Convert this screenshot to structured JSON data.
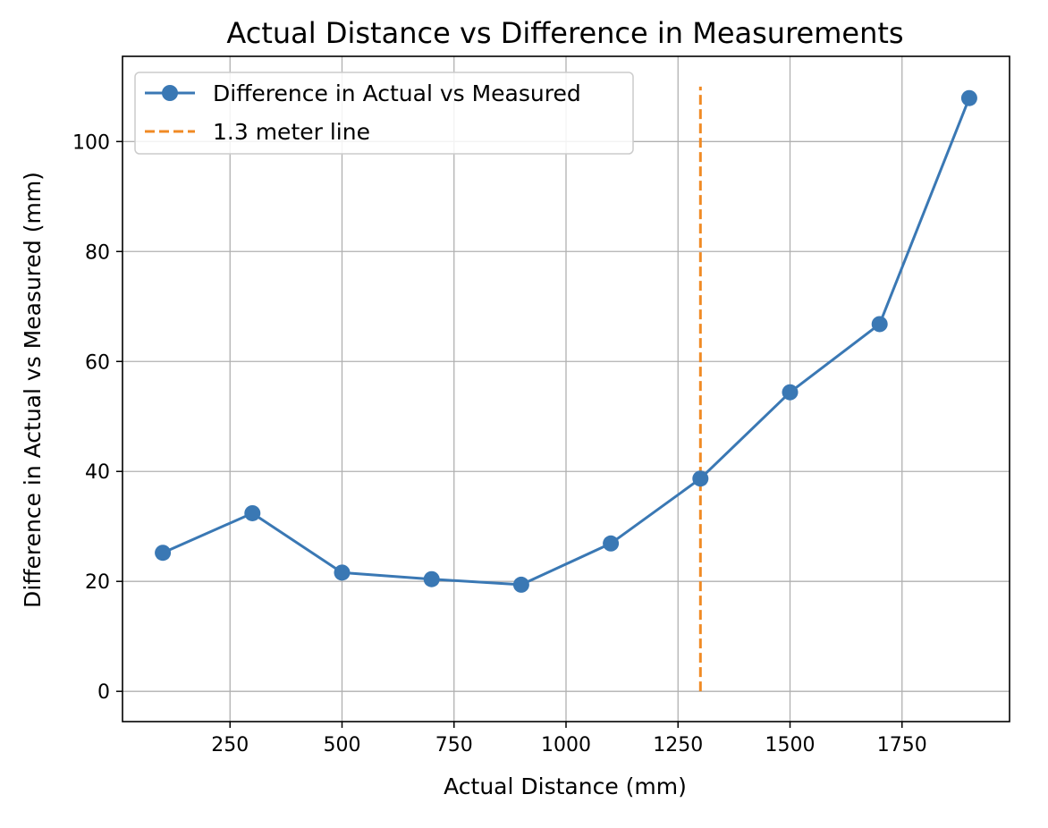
{
  "chart_data": {
    "type": "line",
    "title": "Actual Distance vs Difference in Measurements",
    "xlabel": "Actual Distance (mm)",
    "ylabel": "Difference in Actual vs Measured (mm)",
    "xlim": [
      10,
      1990
    ],
    "ylim": [
      -5.5,
      115.5
    ],
    "xticks": [
      250,
      500,
      750,
      1000,
      1250,
      1500,
      1750
    ],
    "yticks": [
      0,
      20,
      40,
      60,
      80,
      100
    ],
    "grid": true,
    "legend_position": "top-left",
    "series": [
      {
        "name": "Difference in Actual vs Measured",
        "style": "line-with-markers",
        "color": "#3a78b4",
        "x": [
          100,
          300,
          500,
          700,
          900,
          1100,
          1300,
          1500,
          1700,
          1900
        ],
        "y": [
          25.2,
          32.4,
          21.6,
          20.4,
          19.4,
          26.9,
          38.7,
          54.4,
          66.8,
          107.9
        ]
      },
      {
        "name": "1.3 meter line",
        "style": "dashed-vertical",
        "color": "#f08a24",
        "x": [
          1300,
          1300
        ],
        "y": [
          0,
          110
        ]
      }
    ]
  }
}
